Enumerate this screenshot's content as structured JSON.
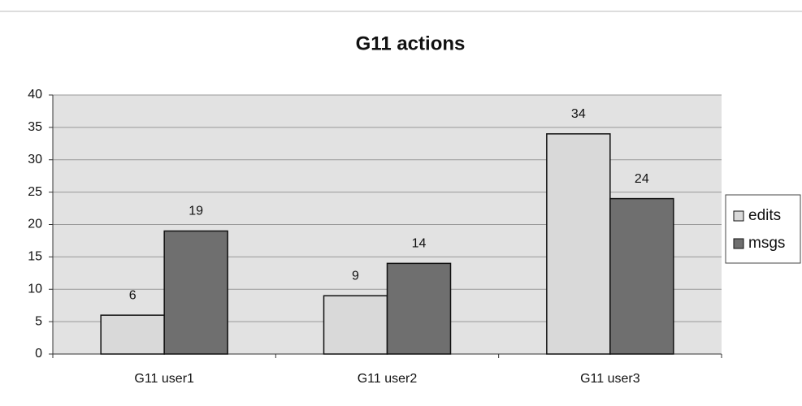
{
  "chart_data": {
    "type": "bar",
    "title": "G11 actions",
    "categories": [
      "G11 user1",
      "G11 user2",
      "G11 user3"
    ],
    "series": [
      {
        "name": "edits",
        "color": "#d9d9d9",
        "values": [
          6,
          9,
          34
        ]
      },
      {
        "name": "msgs",
        "color": "#6f6f6f",
        "values": [
          19,
          14,
          24
        ]
      }
    ],
    "ylim": [
      0,
      40
    ],
    "yticks": [
      0,
      5,
      10,
      15,
      20,
      25,
      30,
      35,
      40
    ],
    "grid": true,
    "legend": "right"
  }
}
